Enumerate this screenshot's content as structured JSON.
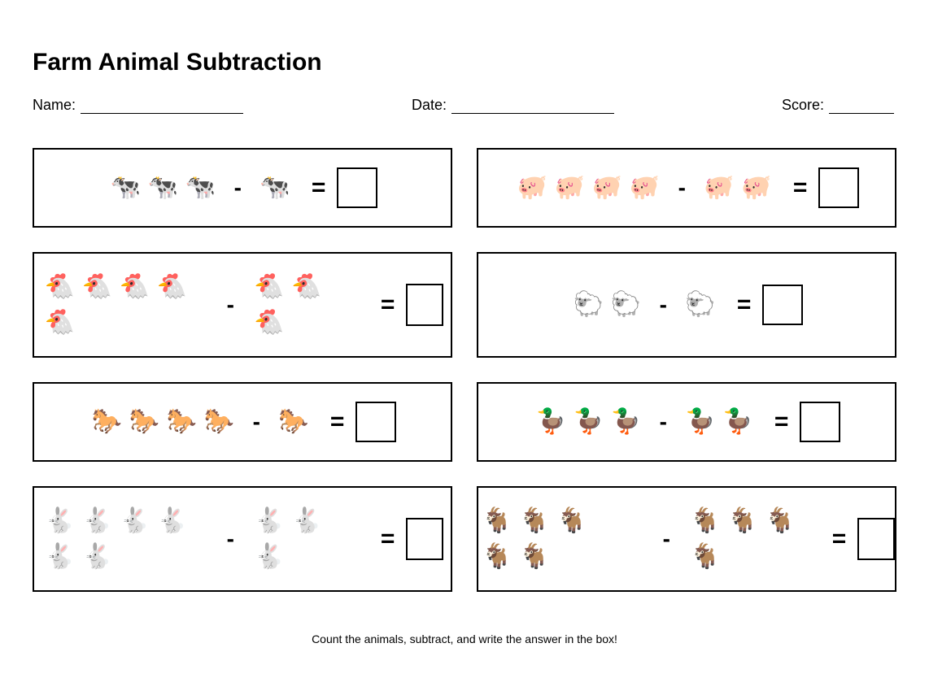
{
  "title": "Farm Animal Subtraction",
  "fields": {
    "name_label": "Name:",
    "date_label": "Date:",
    "score_label": "Score:"
  },
  "operators": {
    "minus": "-",
    "equals": "="
  },
  "problems": [
    {
      "animal": "cow",
      "glyph": "🐄",
      "minuend": 3,
      "subtrahend": 1
    },
    {
      "animal": "pig",
      "glyph": "🐖",
      "minuend": 4,
      "subtrahend": 2
    },
    {
      "animal": "chicken",
      "glyph": "🐔",
      "minuend": 5,
      "subtrahend": 3
    },
    {
      "animal": "sheep",
      "glyph": "🐑",
      "minuend": 2,
      "subtrahend": 1
    },
    {
      "animal": "horse",
      "glyph": "🐎",
      "minuend": 4,
      "subtrahend": 1
    },
    {
      "animal": "duck",
      "glyph": "🦆",
      "minuend": 3,
      "subtrahend": 2
    },
    {
      "animal": "rabbit",
      "glyph": "🐇",
      "minuend": 6,
      "subtrahend": 3
    },
    {
      "animal": "goat",
      "glyph": "🐐",
      "minuend": 5,
      "subtrahend": 4
    }
  ],
  "footer": "Count the animals, subtract, and write the answer in the box!"
}
